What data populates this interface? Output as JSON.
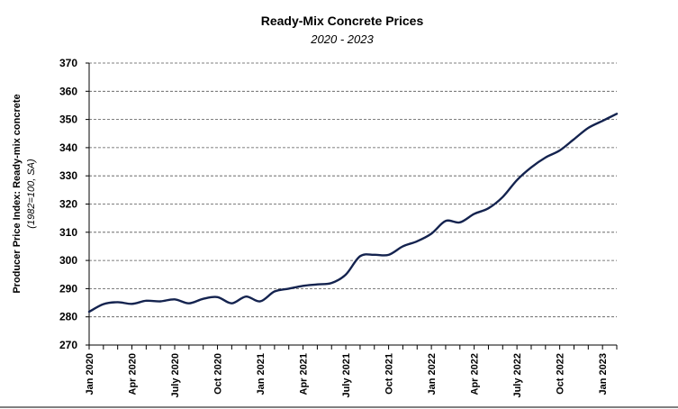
{
  "chart_data": {
    "type": "line",
    "title": "Ready-Mix Concrete Prices",
    "subtitle": "2020 - 2023",
    "ylabel": "Producer Price Index: Ready-mix concrete",
    "ylabel_sub": "(1982=100, SA)",
    "ylim": [
      270,
      370
    ],
    "yticks": [
      270,
      280,
      290,
      300,
      310,
      320,
      330,
      340,
      350,
      360,
      370
    ],
    "xtick_labels": [
      "Jan 2020",
      "Apr 2020",
      "July 2020",
      "Oct 2020",
      "Jan 2021",
      "Apr 2021",
      "July 2021",
      "Oct 2021",
      "Jan 2022",
      "Apr 2022",
      "July 2022",
      "Oct 2022",
      "Jan 2023"
    ],
    "grid": true,
    "legend": "none",
    "line_color": "#14234f",
    "series": [
      {
        "x": [
          "2020-01",
          "2020-02",
          "2020-03",
          "2020-04",
          "2020-05",
          "2020-06",
          "2020-07",
          "2020-08",
          "2020-09",
          "2020-10",
          "2020-11",
          "2020-12",
          "2021-01",
          "2021-02",
          "2021-03",
          "2021-04",
          "2021-05",
          "2021-06",
          "2021-07",
          "2021-08",
          "2021-09",
          "2021-10",
          "2021-11",
          "2021-12",
          "2022-01",
          "2022-02",
          "2022-03",
          "2022-04",
          "2022-05",
          "2022-06",
          "2022-07",
          "2022-08",
          "2022-09",
          "2022-10",
          "2022-11",
          "2022-12",
          "2023-01",
          "2023-02"
        ],
        "values": [
          281.8,
          284.5,
          285.2,
          284.6,
          285.7,
          285.5,
          286.2,
          284.8,
          286.4,
          287.0,
          284.8,
          287.2,
          285.5,
          289.0,
          290.0,
          291.0,
          291.5,
          292.0,
          295.0,
          301.5,
          302.0,
          302.0,
          305.0,
          306.8,
          309.5,
          314.0,
          313.5,
          316.5,
          318.5,
          322.5,
          328.5,
          333.0,
          336.5,
          339.0,
          343.0,
          347.0,
          349.5,
          352.0
        ]
      }
    ]
  }
}
